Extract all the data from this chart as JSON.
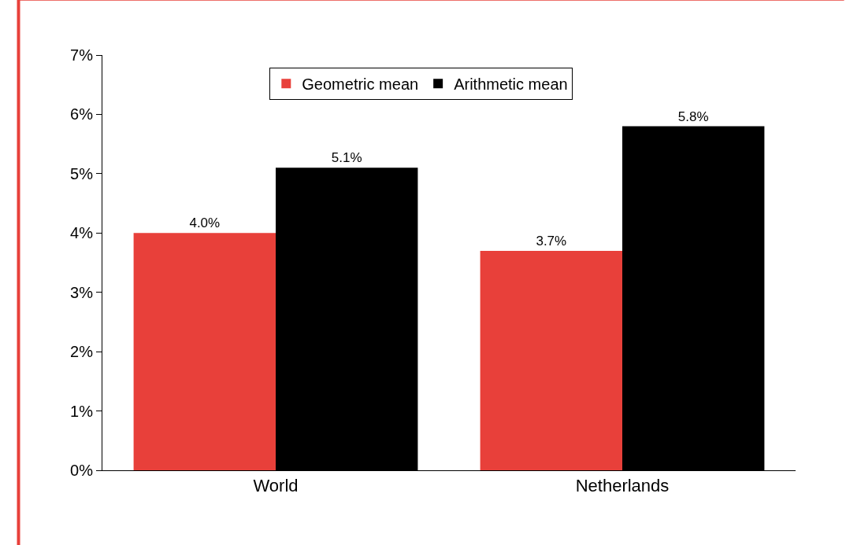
{
  "chart_data": {
    "type": "bar",
    "categories": [
      "World",
      "Netherlands"
    ],
    "series": [
      {
        "name": "Geometric mean",
        "color": "#e8403a",
        "values": [
          4.0,
          3.7
        ],
        "value_labels": [
          "4.0%",
          "3.7%"
        ]
      },
      {
        "name": "Arithmetic mean",
        "color": "#000000",
        "values": [
          5.1,
          5.8
        ],
        "value_labels": [
          "5.1%",
          "5.8%"
        ]
      }
    ],
    "ylim": [
      0,
      7
    ],
    "yticks": [
      {
        "value": 0,
        "label": "0%"
      },
      {
        "value": 1,
        "label": "1%"
      },
      {
        "value": 2,
        "label": "2%"
      },
      {
        "value": 3,
        "label": "3%"
      },
      {
        "value": 4,
        "label": "4%"
      },
      {
        "value": 5,
        "label": "5%"
      },
      {
        "value": 6,
        "label": "6%"
      },
      {
        "value": 7,
        "label": "7%"
      }
    ],
    "legend": "top"
  }
}
